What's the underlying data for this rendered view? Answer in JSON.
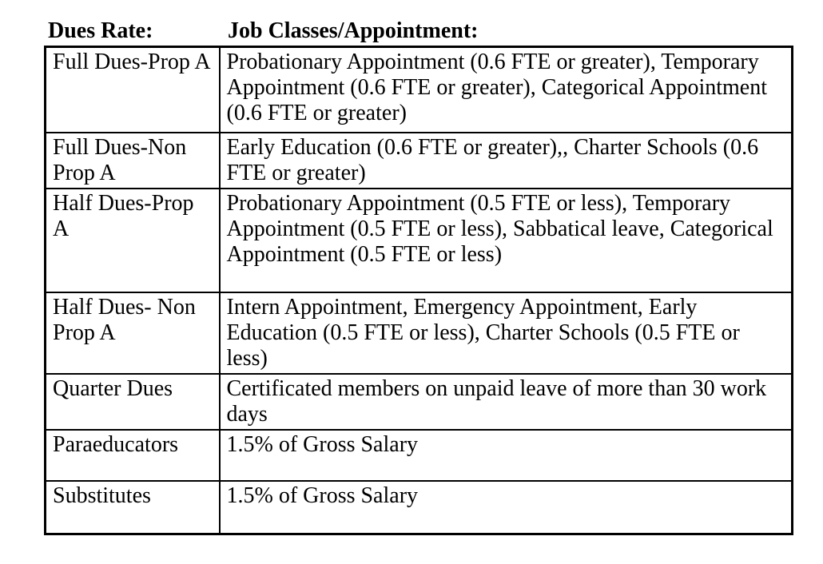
{
  "page": {
    "background_color": "#ffffff",
    "text_color": "#000000",
    "border_color": "#000000"
  },
  "column_headers": {
    "dues_rate_label": "Dues Rate:",
    "job_classes_label": "Job Classes/Appointment:"
  },
  "table": {
    "rows": [
      {
        "dues_rate": "Full Dues-Prop A",
        "job_classes": "Probationary Appointment (0.6 FTE or greater), Temporary Appointment (0.6 FTE or greater), Categorical Appointment (0.6 FTE or greater)"
      },
      {
        "dues_rate": "Full Dues-Non Prop A",
        "job_classes": "Early Education (0.6 FTE or greater),, Charter Schools (0.6 FTE or greater)"
      },
      {
        "dues_rate": "Half Dues-Prop A",
        "job_classes": "Probationary Appointment (0.5 FTE or less), Temporary Appointment (0.5 FTE or less), Sabbatical leave, Categorical Appointment (0.5 FTE or less)"
      },
      {
        "dues_rate": "Half Dues- Non Prop A",
        "job_classes": "Intern Appointment, Emergency Appointment, Early Education (0.5 FTE or less), Charter Schools (0.5 FTE or less)"
      },
      {
        "dues_rate": "Quarter Dues",
        "job_classes": "Certificated members on unpaid leave of more than 30 work days"
      },
      {
        "dues_rate": "Paraeducators",
        "job_classes": "1.5% of Gross Salary"
      },
      {
        "dues_rate": "Substitutes",
        "job_classes": "1.5% of Gross Salary"
      }
    ]
  }
}
